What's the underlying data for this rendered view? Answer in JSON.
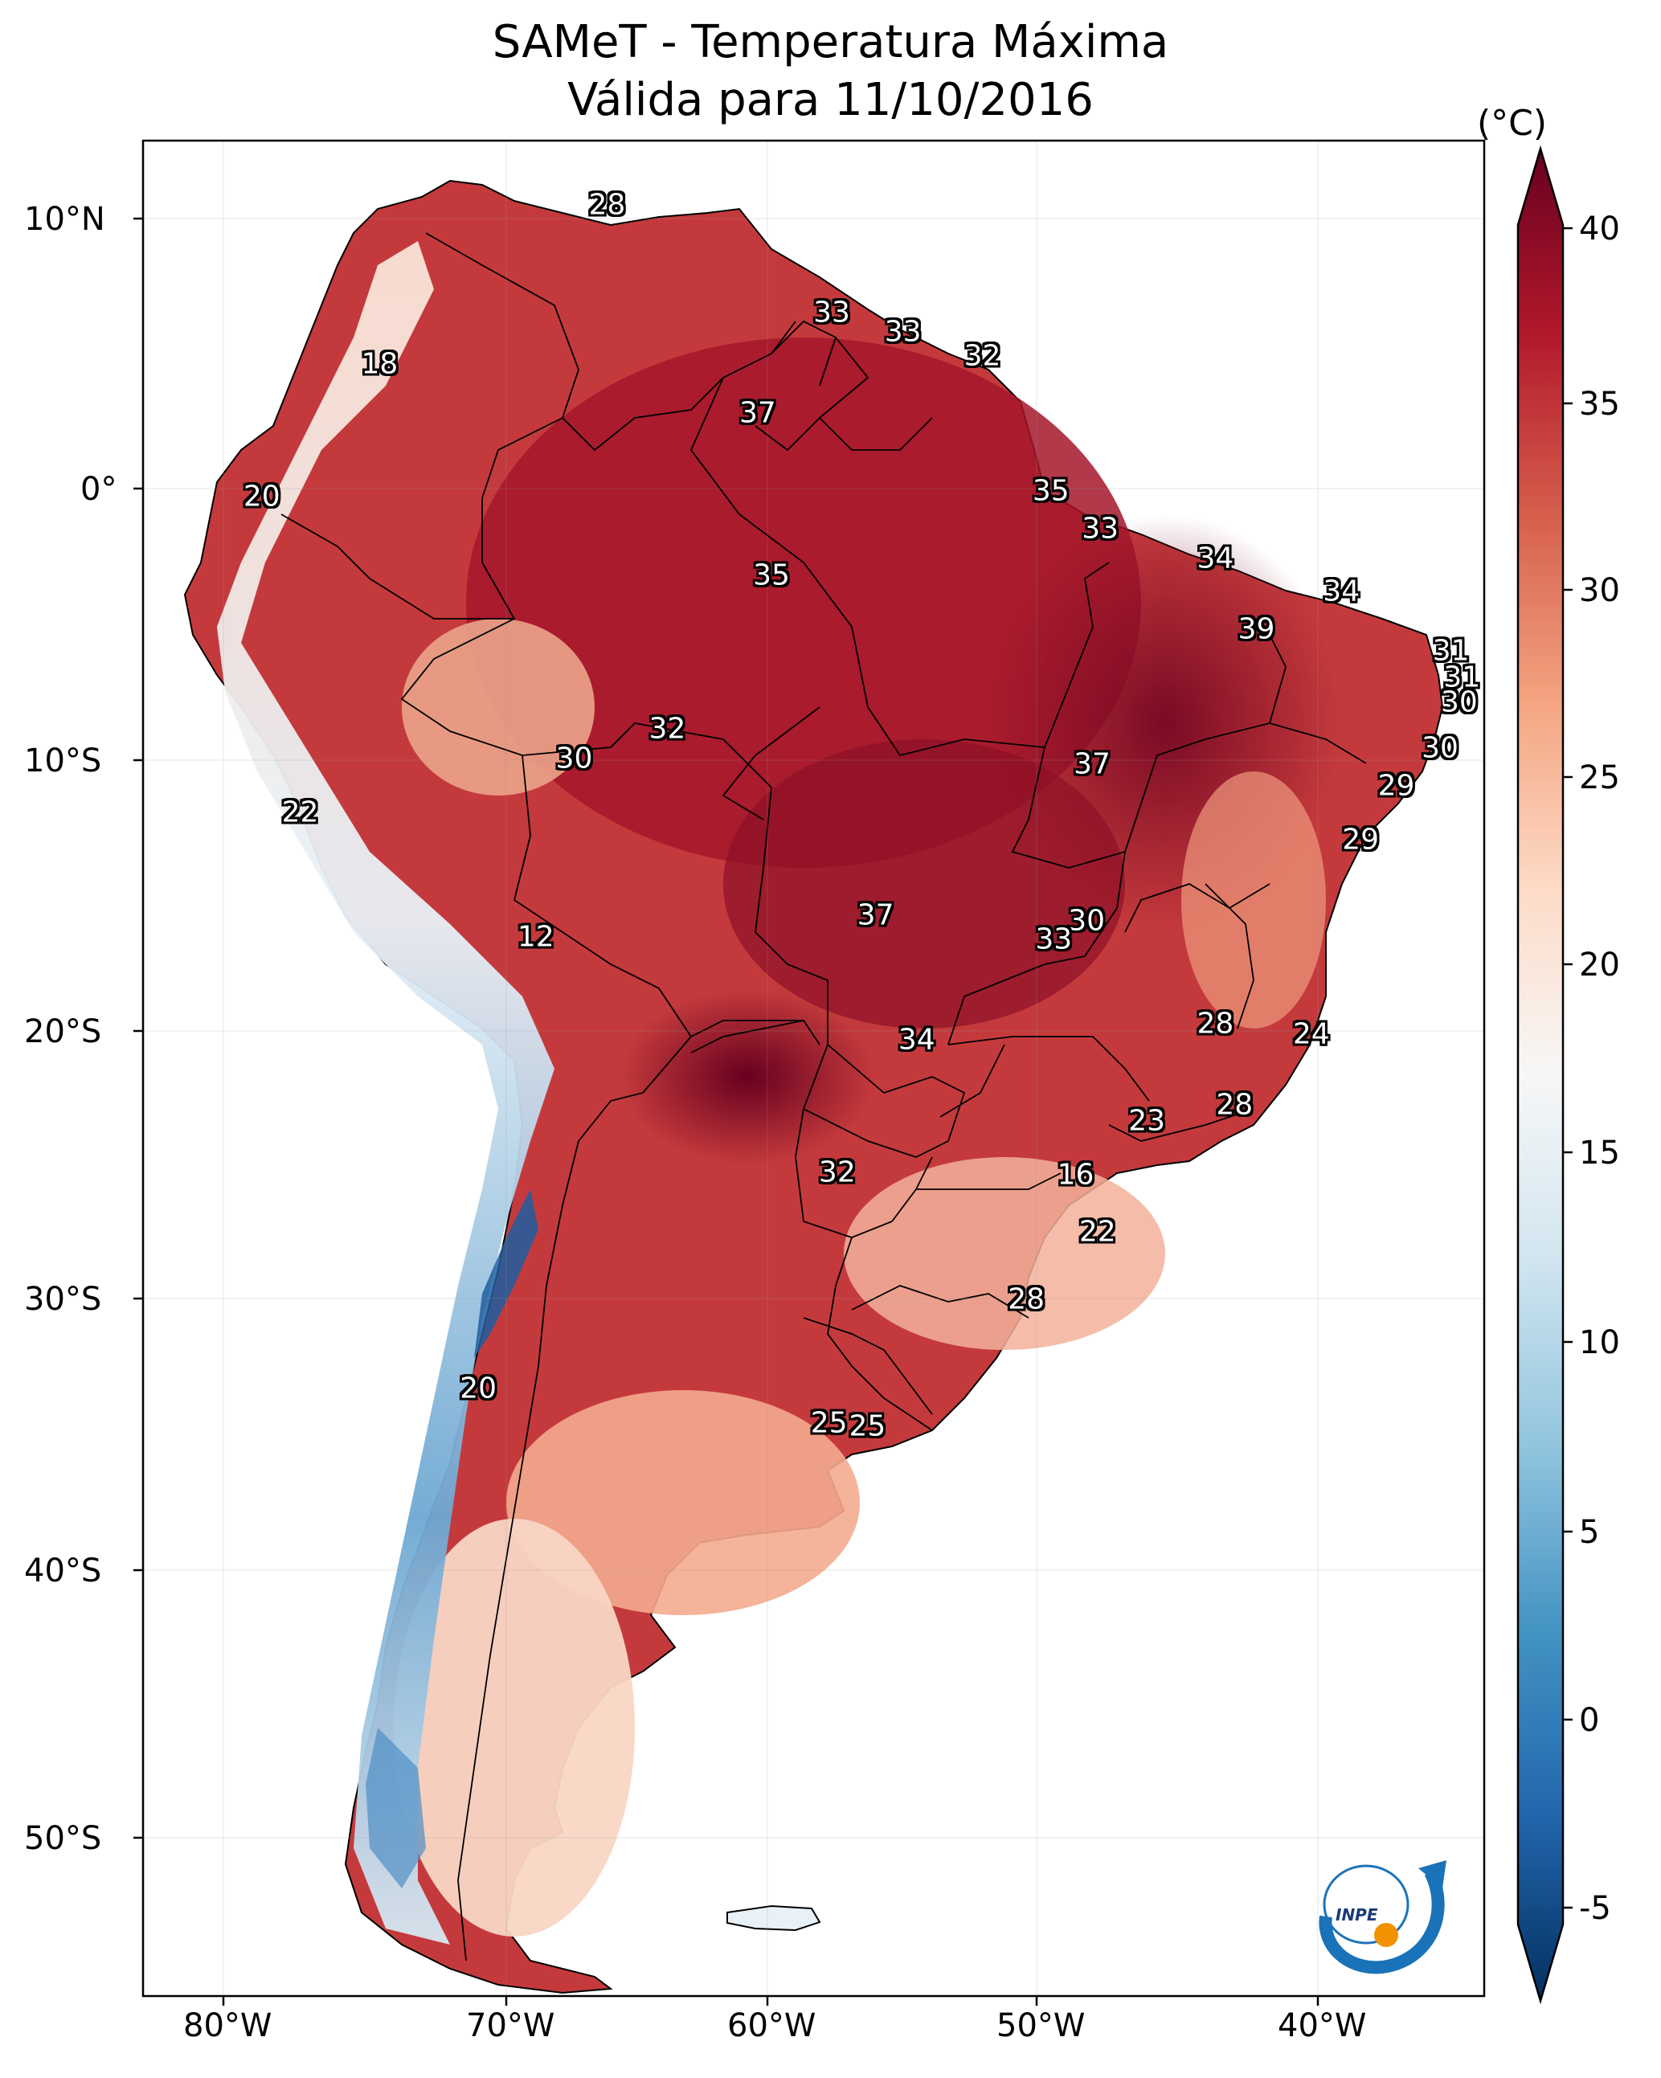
{
  "title": {
    "line1": "SAMeT - Temperatura Máxima",
    "line2": "Válida para 11/10/2016"
  },
  "axes": {
    "lon_labels": [
      "80°W",
      "70°W",
      "60°W",
      "50°W",
      "40°W"
    ],
    "lat_labels": [
      "10°N",
      "0°",
      "10°S",
      "20°S",
      "30°S",
      "40°S",
      "50°S"
    ]
  },
  "colorbar": {
    "unit": "(°C)",
    "tick_labels": [
      "40",
      "35",
      "30",
      "25",
      "20",
      "15",
      "10",
      "5",
      "0",
      "-5"
    ],
    "min": -5,
    "max": 40,
    "colors": [
      "#053061",
      "#2166ac",
      "#4393c3",
      "#92c5de",
      "#d1e5f0",
      "#f7f7f7",
      "#fddbc7",
      "#f4a582",
      "#d6604d",
      "#b2182b",
      "#67001f"
    ]
  },
  "temperature_labels": [
    {
      "text": "28",
      "lon": -66,
      "lat": 10.5
    },
    {
      "text": "33",
      "lon": -57.8,
      "lat": 6.5
    },
    {
      "text": "33",
      "lon": -55.2,
      "lat": 5.8
    },
    {
      "text": "32",
      "lon": -52.3,
      "lat": 4.9
    },
    {
      "text": "18",
      "lon": -74.3,
      "lat": 4.6
    },
    {
      "text": "37",
      "lon": -60.5,
      "lat": 2.8
    },
    {
      "text": "20",
      "lon": -78.6,
      "lat": -0.3
    },
    {
      "text": "35",
      "lon": -49.8,
      "lat": -0.1
    },
    {
      "text": "33",
      "lon": -48,
      "lat": -1.5
    },
    {
      "text": "34",
      "lon": -43.8,
      "lat": -2.6
    },
    {
      "text": "34",
      "lon": -39.2,
      "lat": -3.8
    },
    {
      "text": "35",
      "lon": -60,
      "lat": -3.2
    },
    {
      "text": "39",
      "lon": -42.3,
      "lat": -5.2
    },
    {
      "text": "31",
      "lon": -35.2,
      "lat": -6
    },
    {
      "text": "31",
      "lon": -34.8,
      "lat": -7
    },
    {
      "text": "30",
      "lon": -34.9,
      "lat": -7.9
    },
    {
      "text": "32",
      "lon": -63.8,
      "lat": -8.9
    },
    {
      "text": "30",
      "lon": -67.2,
      "lat": -10
    },
    {
      "text": "30",
      "lon": -35.6,
      "lat": -9.6
    },
    {
      "text": "37",
      "lon": -48.3,
      "lat": -10.2
    },
    {
      "text": "29",
      "lon": -37.2,
      "lat": -11
    },
    {
      "text": "22",
      "lon": -77.2,
      "lat": -12
    },
    {
      "text": "29",
      "lon": -38.5,
      "lat": -13
    },
    {
      "text": "37",
      "lon": -56.2,
      "lat": -15.8
    },
    {
      "text": "30",
      "lon": -48.5,
      "lat": -16
    },
    {
      "text": "33",
      "lon": -49.7,
      "lat": -16.7
    },
    {
      "text": "12",
      "lon": -68.6,
      "lat": -16.6
    },
    {
      "text": "28",
      "lon": -43.8,
      "lat": -19.8
    },
    {
      "text": "24",
      "lon": -40.3,
      "lat": -20.2
    },
    {
      "text": "34",
      "lon": -54.7,
      "lat": -20.4
    },
    {
      "text": "28",
      "lon": -43.1,
      "lat": -22.8
    },
    {
      "text": "23",
      "lon": -46.3,
      "lat": -23.4
    },
    {
      "text": "32",
      "lon": -57.6,
      "lat": -25.3
    },
    {
      "text": "16",
      "lon": -48.9,
      "lat": -25.4
    },
    {
      "text": "22",
      "lon": -48.1,
      "lat": -27.5
    },
    {
      "text": "28",
      "lon": -50.7,
      "lat": -30
    },
    {
      "text": "20",
      "lon": -70.7,
      "lat": -33.3
    },
    {
      "text": "25",
      "lon": -57.9,
      "lat": -34.6
    },
    {
      "text": "25",
      "lon": -56.5,
      "lat": -34.7
    }
  ],
  "logo": {
    "text": "INPE"
  }
}
